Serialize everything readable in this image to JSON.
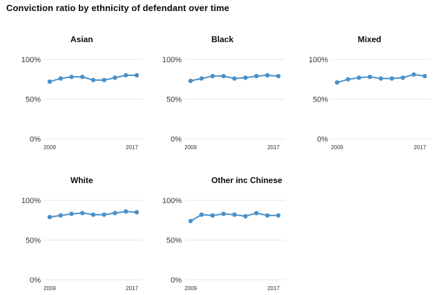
{
  "title": "Conviction ratio by ethnicity of defendant over time",
  "colors": {
    "series": "#4a90c8",
    "grid": "#e6e6e6",
    "text": "#333333"
  },
  "chart_data": {
    "type": "line",
    "layout": "small-multiples",
    "x": [
      2009,
      2010,
      2011,
      2012,
      2013,
      2014,
      2015,
      2016,
      2017
    ],
    "x_tick_labels": [
      "2009",
      "2017"
    ],
    "y_tick_labels": [
      "100%",
      "50%",
      "0%"
    ],
    "ylim": [
      0,
      100
    ],
    "panels": [
      {
        "title": "Asian",
        "values": [
          72,
          76,
          78,
          78,
          74,
          74,
          77,
          80,
          80
        ]
      },
      {
        "title": "Black",
        "values": [
          73,
          76,
          79,
          79,
          76,
          77,
          79,
          80,
          79
        ]
      },
      {
        "title": "Mixed",
        "values": [
          71,
          75,
          77,
          78,
          76,
          76,
          77,
          81,
          79
        ]
      },
      {
        "title": "White",
        "values": [
          79,
          81,
          83,
          84,
          82,
          82,
          84,
          86,
          85
        ]
      },
      {
        "title": "Other inc Chinese",
        "values": [
          74,
          82,
          81,
          83,
          82,
          80,
          84,
          81,
          81
        ]
      }
    ]
  }
}
